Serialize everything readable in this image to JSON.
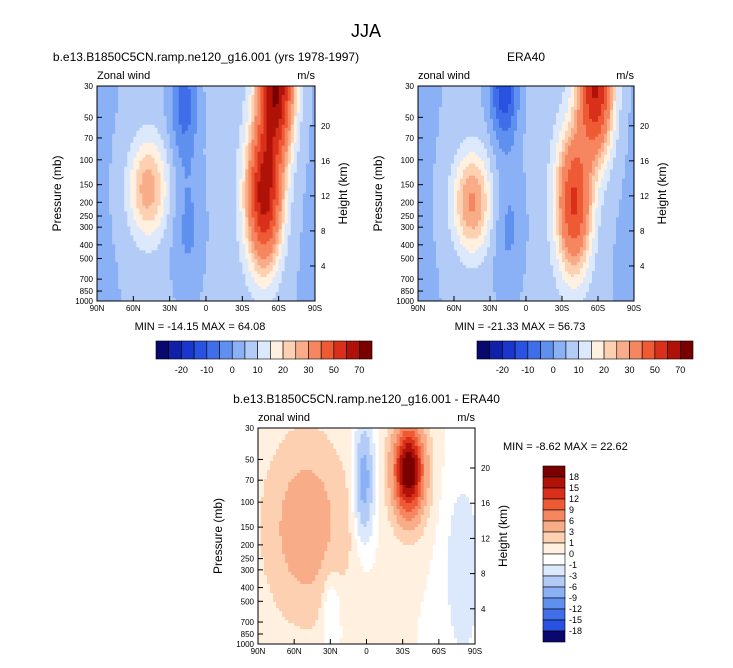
{
  "figure": {
    "title": "JJA",
    "colors": {
      "cold_max": "#08086e",
      "warm_max": "#7a0000",
      "neutral": "#ffffff"
    }
  },
  "chart_data": [
    {
      "type": "heatmap",
      "title": "b.e13.B1850C5CN.ramp.ne120_g16.001 (yrs 1978-1997)",
      "left_label": "Zonal wind",
      "right_label": "m/s",
      "ylabel": "Pressure (mb)",
      "ylabel_right": "Height (km)",
      "x_ticks": [
        "90N",
        "60N",
        "30N",
        "0",
        "30S",
        "60S",
        "90S"
      ],
      "x_values": [
        90,
        60,
        30,
        0,
        -30,
        -60,
        -90
      ],
      "xlim": [
        90,
        -90
      ],
      "y_ticks": [
        30,
        50,
        70,
        100,
        150,
        200,
        250,
        300,
        400,
        500,
        700,
        850,
        1000
      ],
      "ylim": [
        1000,
        30
      ],
      "y_scale": "log",
      "height_ticks": [
        4,
        8,
        12,
        16,
        20
      ],
      "stats": "MIN = -14.15  MAX = 64.08",
      "min": -14.15,
      "max": 64.08,
      "field": {
        "jets": [
          {
            "lat": -48,
            "p": 180,
            "amp": 58
          },
          {
            "lat": -58,
            "p": 30,
            "amp": 64
          }
        ],
        "easterly": {
          "lat": 18,
          "p": 40,
          "amp": -14
        },
        "nh_jet": {
          "lat": 48,
          "p": 160,
          "amp": 22
        }
      }
    },
    {
      "type": "heatmap",
      "title": "ERA40",
      "left_label": "zonal wind",
      "right_label": "m/s",
      "ylabel": "Pressure (mb)",
      "ylabel_right": "Height (km)",
      "x_ticks": [
        "90N",
        "60N",
        "30N",
        "0",
        "30S",
        "60S",
        "90S"
      ],
      "x_values": [
        90,
        60,
        30,
        0,
        -30,
        -60,
        -90
      ],
      "xlim": [
        90,
        -90
      ],
      "y_ticks": [
        30,
        50,
        70,
        100,
        150,
        200,
        250,
        300,
        400,
        500,
        700,
        850,
        1000
      ],
      "ylim": [
        1000,
        30
      ],
      "y_scale": "log",
      "height_ticks": [
        4,
        8,
        12,
        16,
        20
      ],
      "stats": "MIN = -21.33  MAX = 56.73",
      "min": -21.33,
      "max": 56.73,
      "field": {
        "jets": [
          {
            "lat": -40,
            "p": 200,
            "amp": 45
          },
          {
            "lat": -58,
            "p": 30,
            "amp": 56
          }
        ],
        "easterly": {
          "lat": 18,
          "p": 30,
          "amp": -21
        },
        "nh_jet": {
          "lat": 45,
          "p": 200,
          "amp": 25
        }
      }
    },
    {
      "type": "heatmap",
      "title": "b.e13.B1850C5CN.ramp.ne120_g16.001 - ERA40",
      "left_label": "zonal wind",
      "right_label": "m/s",
      "ylabel": "Pressure (mb)",
      "ylabel_right": "Height (km)",
      "x_ticks": [
        "90N",
        "60N",
        "30N",
        "0",
        "30S",
        "60S",
        "90S"
      ],
      "x_values": [
        90,
        60,
        30,
        0,
        -30,
        -60,
        -90
      ],
      "xlim": [
        90,
        -90
      ],
      "y_ticks": [
        30,
        50,
        70,
        100,
        150,
        200,
        250,
        300,
        400,
        500,
        700,
        850,
        1000
      ],
      "ylim": [
        1000,
        30
      ],
      "y_scale": "log",
      "height_ticks": [
        4,
        8,
        12,
        16,
        20
      ],
      "stats": "MIN = -8.62  MAX = 22.62",
      "min": -8.62,
      "max": 22.62,
      "field": {
        "max_center": {
          "lat": -35,
          "p": 60,
          "amp": 22
        },
        "min_center": {
          "lat": 2,
          "p": 70,
          "amp": -8
        }
      }
    }
  ],
  "colorbar_full": {
    "labels": [
      "-20",
      "-10",
      "0",
      "10",
      "20",
      "30",
      "50",
      "70"
    ],
    "levels": [
      -25,
      -20,
      -15,
      -10,
      -5,
      0,
      5,
      10,
      15,
      20,
      25,
      30,
      40,
      50,
      60,
      70
    ],
    "colors": [
      "#08086e",
      "#1020a8",
      "#1a36cc",
      "#2a52e0",
      "#3f6ee8",
      "#5f90f0",
      "#8ab0f5",
      "#b3ccf7",
      "#dce8fb",
      "#fff0e0",
      "#fcd0b0",
      "#f9ac88",
      "#f58660",
      "#ee5a34",
      "#d8301a",
      "#b01208",
      "#7a0000"
    ]
  },
  "colorbar_diff": {
    "labels": [
      "18",
      "15",
      "12",
      "9",
      "6",
      "3",
      "1",
      "0",
      "-1",
      "-3",
      "-6",
      "-9",
      "-12",
      "-15",
      "-18"
    ],
    "levels": [
      18,
      15,
      12,
      9,
      6,
      3,
      1,
      0,
      -1,
      -3,
      -6,
      -9,
      -12,
      -15,
      -18
    ],
    "colors": [
      "#7a0000",
      "#b01208",
      "#d8301a",
      "#ee5a34",
      "#f58660",
      "#f9ac88",
      "#fcd0b0",
      "#fff0e0",
      "#ffffff",
      "#dce8fb",
      "#b3ccf7",
      "#8ab0f5",
      "#5f90f0",
      "#3f6ee8",
      "#2a52e0",
      "#08086e"
    ]
  }
}
